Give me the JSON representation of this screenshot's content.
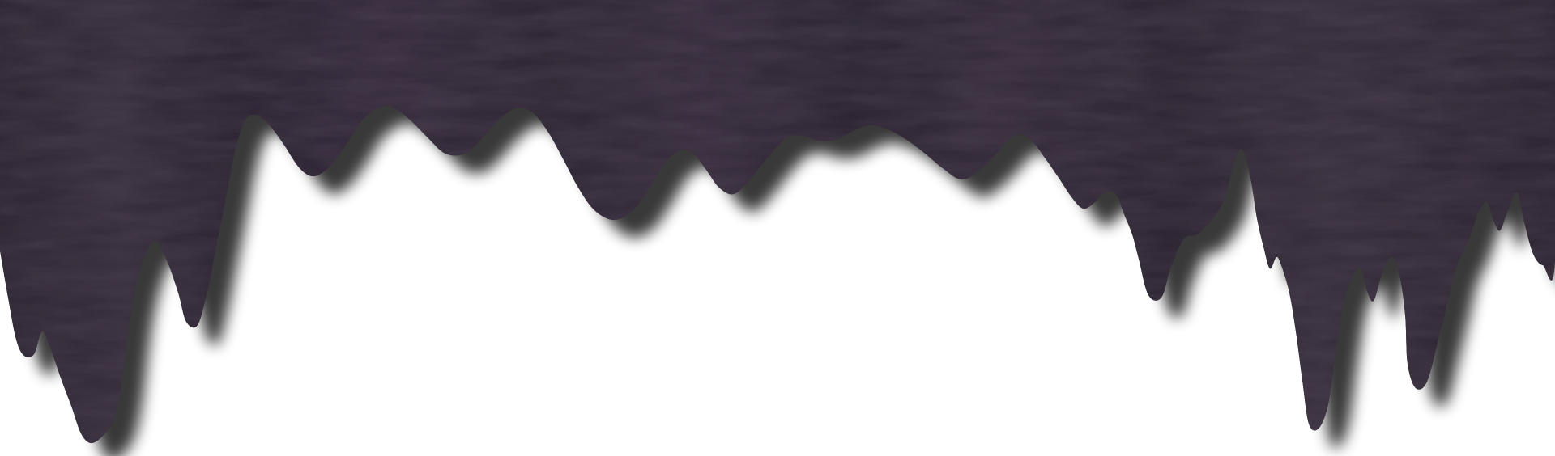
{
  "banner": {
    "fill_color": "#2d2530",
    "fill_color_dark": "#231c26",
    "fill_color_light": "#3a3140",
    "shadow_color": "#000000",
    "background_color": "#ffffff",
    "style": "dripping-paint-edge"
  }
}
